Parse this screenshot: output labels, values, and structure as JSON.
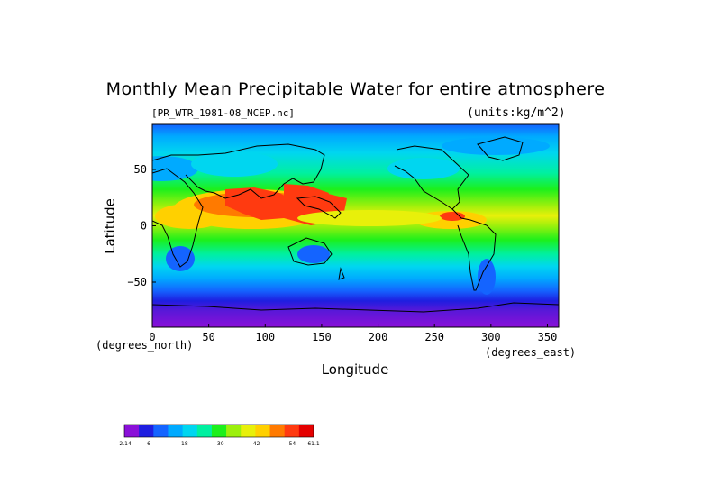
{
  "title": "Monthly Mean Precipitable Water for entire atmosphere",
  "file_label": "[PR_WTR_1981-08_NCEP.nc]",
  "units_label": "(units:kg/m^2)",
  "chart_data": {
    "type": "heatmap",
    "projection": "equirectangular",
    "xlabel": "Longitude",
    "ylabel": "Latitude",
    "x_unit": "(degrees_east)",
    "y_unit": "(degrees_north)",
    "xlim": [
      0,
      360
    ],
    "ylim": [
      -90,
      90
    ],
    "xticks": [
      0,
      50,
      100,
      150,
      200,
      250,
      300,
      350
    ],
    "yticks": [
      -50,
      0,
      50
    ],
    "colorbar": {
      "tick_labels": [
        "-2.14",
        "6",
        "18",
        "30",
        "42",
        "54",
        "61.1"
      ],
      "tick_values": [
        -2.14,
        6,
        18,
        30,
        42,
        54,
        61.1
      ],
      "colors": [
        "#8a10d8",
        "#1e1ee0",
        "#1464ff",
        "#00aaff",
        "#00d6f0",
        "#00f0a0",
        "#1cf01c",
        "#9cf00c",
        "#e8f00a",
        "#ffd000",
        "#ff7a00",
        "#ff3a10",
        "#e40000"
      ]
    },
    "features": "Precipitable water highest (~54-61 kg/m^2) over Indian Ocean, South/Southeast Asia and tropical West Pacific; high along ITCZ and Central America; lowest near poles and Antarctica.",
    "grid": false,
    "legend_position": "bottom-left"
  }
}
